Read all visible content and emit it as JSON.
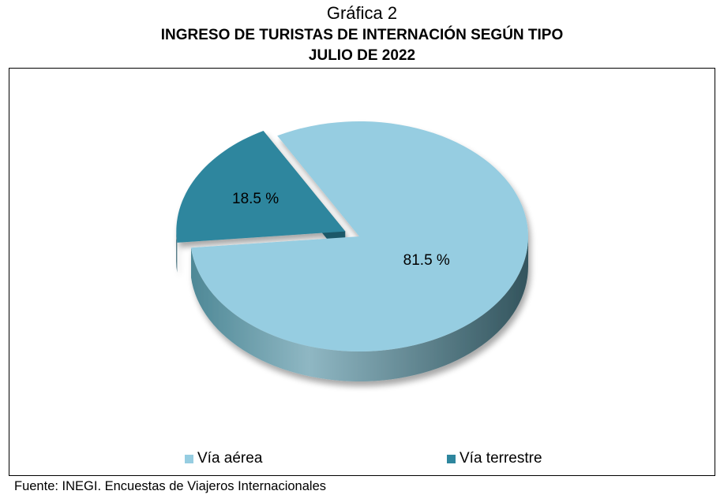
{
  "header": {
    "chart_number": "Gráfica 2",
    "title": "INGRESO DE TURISTAS DE INTERNACIÓN SEGÚN TIPO",
    "subtitle": "JULIO DE 2022"
  },
  "chart_data": {
    "type": "pie",
    "title": "INGRESO DE TURISTAS DE INTERNACIÓN SEGÚN TIPO",
    "subtitle": "JULIO DE 2022",
    "three_d": true,
    "legend_position": "bottom",
    "slices": [
      {
        "name": "Vía aérea",
        "value": 81.5,
        "label": "81.5 %",
        "color": "#96cde1",
        "exploded": false
      },
      {
        "name": "Vía terrestre",
        "value": 18.5,
        "label": "18.5 %",
        "color": "#2e869e",
        "exploded": true
      }
    ]
  },
  "legend": [
    {
      "label": "Vía aérea",
      "color": "#96cde1"
    },
    {
      "label": "Vía terrestre",
      "color": "#2e869e"
    }
  ],
  "source": "Fuente: INEGI. Encuestas de Viajeros Internacionales"
}
